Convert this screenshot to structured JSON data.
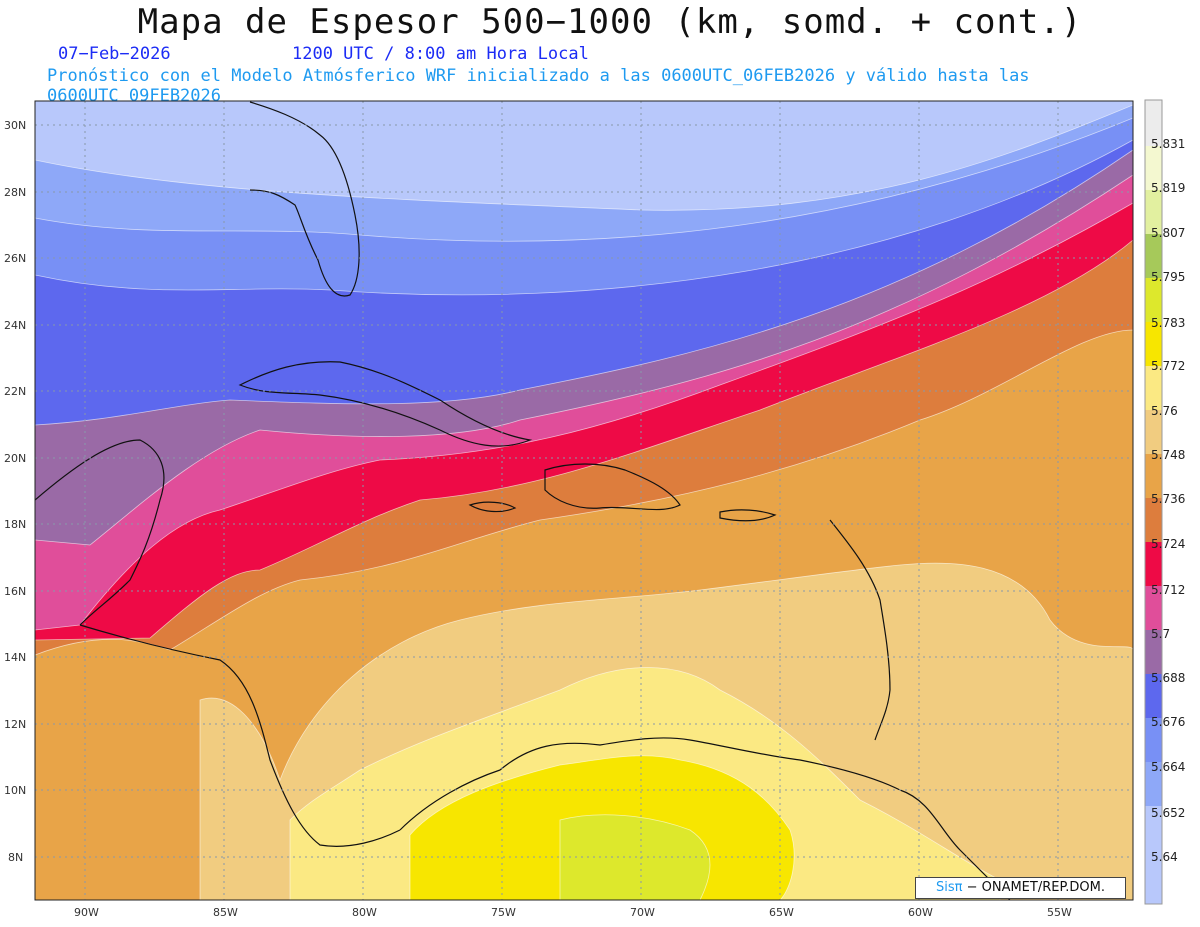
{
  "title": "Mapa de Espesor 500−1000 (km, somd. + cont.)",
  "date": "07−Feb−2026",
  "time": "1200 UTC / 8:00 am Hora Local",
  "forecast": "Pronóstico con el Modelo Atmósferico WRF inicializado a las 0600UTC_06FEB2026 y válido hasta las  0600UTC_09FEB2026",
  "credit": {
    "brand": "Sisπ",
    "text": " − ONAMET/REP.DOM."
  },
  "axes": {
    "lat_labels": [
      "30N",
      "28N",
      "26N",
      "24N",
      "22N",
      "20N",
      "18N",
      "16N",
      "14N",
      "12N",
      "10N",
      "8N"
    ],
    "lon_labels": [
      "90W",
      "85W",
      "80W",
      "75W",
      "70W",
      "65W",
      "60W",
      "55W"
    ]
  },
  "colorbar": {
    "labels": [
      "5.831",
      "5.819",
      "5.807",
      "5.795",
      "5.783",
      "5.772",
      "5.76",
      "5.748",
      "5.736",
      "5.724",
      "5.712",
      "5.7",
      "5.688",
      "5.676",
      "5.664",
      "5.652",
      "5.64"
    ],
    "colors": [
      "#ececec",
      "#f4f8d0",
      "#e2f0a0",
      "#a6c95a",
      "#dde82c",
      "#f7e600",
      "#fbe983",
      "#f1cc80",
      "#e8a448",
      "#dd7d3d",
      "#ee0a46",
      "#e04e9a",
      "#9a6aa6",
      "#5d68ee",
      "#7890f5",
      "#8ea8f8",
      "#b8c8fb"
    ]
  },
  "map": {
    "lat_range": [
      7,
      30.5
    ],
    "lon_range": [
      -92,
      -52.5
    ],
    "bands": [
      {
        "level": "5.64",
        "color": "#b8c8fb"
      },
      {
        "level": "5.652",
        "color": "#8ea8f8"
      },
      {
        "level": "5.664",
        "color": "#7890f5"
      },
      {
        "level": "5.676",
        "color": "#5d68ee"
      },
      {
        "level": "5.688",
        "color": "#9a6aa6"
      },
      {
        "level": "5.7",
        "color": "#e04e9a"
      },
      {
        "level": "5.712",
        "color": "#ee0a46"
      },
      {
        "level": "5.724",
        "color": "#dd7d3d"
      },
      {
        "level": "5.736",
        "color": "#e8a448"
      },
      {
        "level": "5.748",
        "color": "#f1cc80"
      },
      {
        "level": "5.76",
        "color": "#fbe983"
      },
      {
        "level": "5.772",
        "color": "#f7e600"
      },
      {
        "level": "5.783",
        "color": "#dde82c"
      }
    ]
  }
}
